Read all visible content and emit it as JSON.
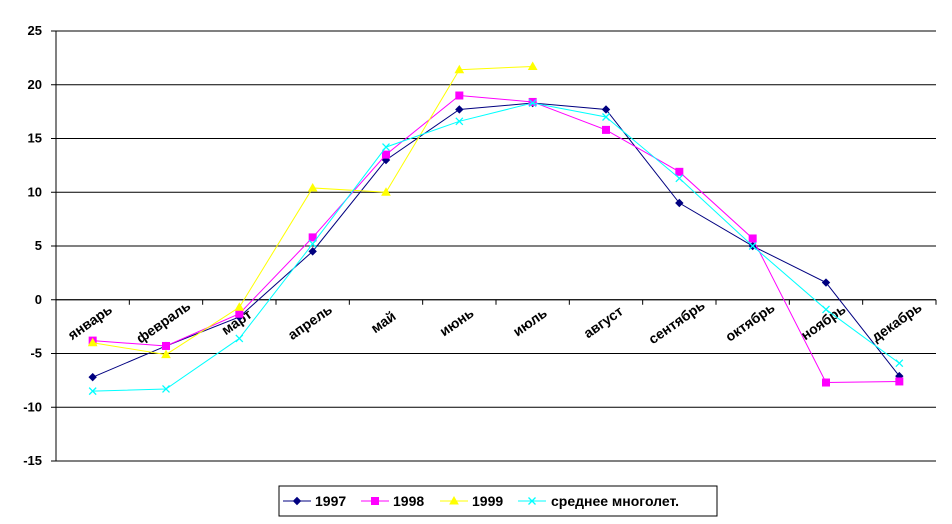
{
  "chart_data": {
    "type": "line",
    "categories": [
      "январь",
      "февраль",
      "март",
      "апрель",
      "май",
      "июнь",
      "июль",
      "август",
      "сентябрь",
      "октябрь",
      "ноябрь",
      "декабрь"
    ],
    "ylim": [
      -15,
      25
    ],
    "yticks": [
      -15,
      -10,
      -5,
      0,
      5,
      10,
      15,
      20,
      25
    ],
    "grid": true,
    "legend_position": "bottom",
    "series": [
      {
        "name": "1997",
        "color": "#000080",
        "marker": "diamond",
        "values": [
          -7.2,
          -4.3,
          -1.6,
          4.5,
          13.0,
          17.7,
          18.3,
          17.7,
          9.0,
          5.0,
          1.6,
          -7.1
        ]
      },
      {
        "name": "1998",
        "color": "#FF00FF",
        "marker": "square",
        "values": [
          -3.8,
          -4.3,
          -1.3,
          5.8,
          13.5,
          19.0,
          18.4,
          15.8,
          11.9,
          5.7,
          -7.7,
          -7.6
        ]
      },
      {
        "name": "1999",
        "color": "#FFFF00",
        "marker": "triangle",
        "values": [
          -4.0,
          -5.1,
          -0.7,
          10.4,
          10.0,
          21.4,
          21.7,
          null,
          null,
          null,
          null,
          null
        ]
      },
      {
        "name": "среднее многолет.",
        "color": "#00FFFF",
        "marker": "x",
        "values": [
          -8.5,
          -8.3,
          -3.6,
          5.2,
          14.2,
          16.6,
          18.3,
          17.0,
          11.3,
          5.0,
          -0.9,
          -5.9
        ]
      }
    ]
  }
}
